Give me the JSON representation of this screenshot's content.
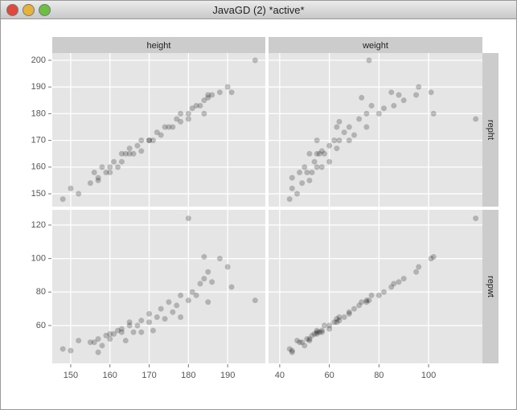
{
  "window": {
    "title": "JavaGD (2) *active*"
  },
  "chart_data": {
    "type": "scatter",
    "point_color": "#000000",
    "grid": true,
    "columns": [
      {
        "label": "height",
        "xlim": [
          145.3,
          199.6
        ],
        "xticks": [
          150,
          160,
          170,
          180,
          190
        ],
        "values": [
          148,
          150,
          152,
          155,
          156,
          157,
          157,
          158,
          159,
          160,
          160,
          161,
          162,
          163,
          163,
          164,
          165,
          165,
          166,
          167,
          168,
          168,
          170,
          170,
          171,
          172,
          173,
          174,
          175,
          176,
          177,
          178,
          178,
          180,
          181,
          182,
          183,
          184,
          185,
          185,
          186,
          188,
          190,
          191,
          180,
          197,
          184
        ]
      },
      {
        "label": "weight",
        "xlim": [
          35.5,
          121.7
        ],
        "xticks": [
          40,
          60,
          80,
          100
        ],
        "values": [
          44,
          45,
          47,
          49,
          48,
          52,
          45,
          50,
          53,
          55,
          51,
          54,
          57,
          56,
          60,
          52,
          58,
          63,
          55,
          60,
          64,
          57,
          62,
          68,
          55,
          66,
          70,
          63,
          75,
          68,
          72,
          80,
          64,
          75,
          82,
          77,
          86,
          90,
          73,
          95,
          88,
          101,
          96,
          85,
          119,
          76,
          102
        ]
      }
    ],
    "rows": [
      {
        "label": "repht",
        "ylim": [
          145.2,
          202.7
        ],
        "yticks": [
          150,
          160,
          170,
          180,
          190,
          200
        ],
        "values": [
          148,
          152,
          150,
          154,
          158,
          155,
          156,
          160,
          158,
          160,
          158,
          162,
          160,
          165,
          162,
          165,
          165,
          167,
          165,
          168,
          170,
          166,
          170,
          170,
          170,
          173,
          172,
          175,
          175,
          175,
          178,
          180,
          177,
          180,
          182,
          183,
          183,
          185,
          186,
          187,
          187,
          188,
          190,
          188,
          178,
          200,
          180
        ]
      },
      {
        "label": "repwt",
        "ylim": [
          37.4,
          129.1
        ],
        "yticks": [
          60,
          80,
          100,
          120
        ],
        "values": [
          46,
          45,
          51,
          50,
          50,
          52,
          44,
          48,
          54,
          55,
          52,
          55,
          57,
          56,
          58,
          51,
          60,
          62,
          56,
          60,
          63,
          56,
          62,
          67,
          57,
          65,
          70,
          64,
          74,
          68,
          72,
          78,
          65,
          75,
          80,
          78,
          85,
          88,
          74,
          92,
          86,
          100,
          95,
          83,
          124,
          75,
          101
        ]
      }
    ]
  }
}
